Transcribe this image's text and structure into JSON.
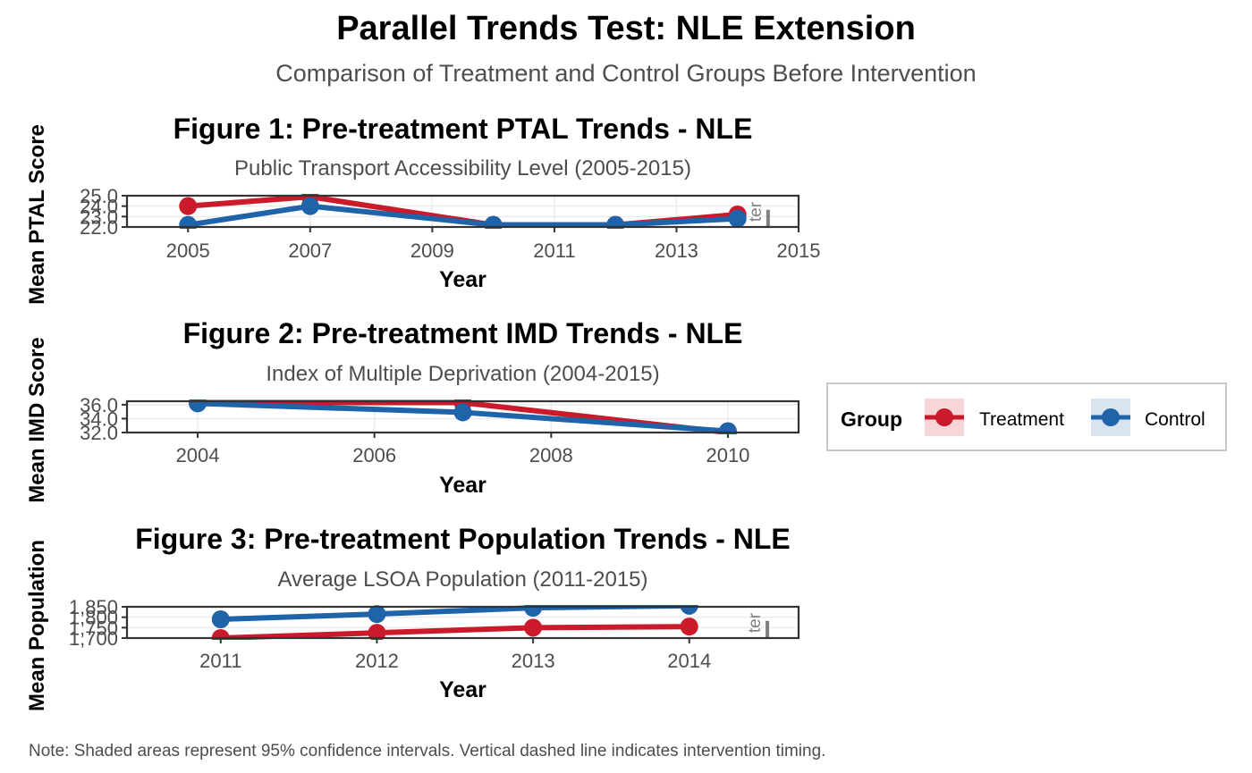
{
  "title": "Parallel Trends Test: NLE Extension",
  "subtitle": "Comparison of Treatment and Control Groups Before Intervention",
  "caption": "Note: Shaded areas represent 95% confidence intervals. Vertical dashed line indicates intervention timing.",
  "ylabels": [
    "Mean PTAL Score",
    "Mean IMD Score",
    "Mean Population"
  ],
  "legend": {
    "title": "Group",
    "entries": [
      {
        "label": "Treatment",
        "color": "#cb1a2a",
        "fill": "#f7d6da"
      },
      {
        "label": "Control",
        "color": "#1f63a8",
        "fill": "#d9e4f0"
      }
    ]
  },
  "colors": {
    "treatment": "#cb1a2a",
    "control": "#1f63a8",
    "grid": "#ebebeb",
    "axis": "#333333"
  },
  "chart_data": [
    {
      "type": "line",
      "title": "Figure 1: Pre-treatment PTAL Trends - NLE",
      "subtitle": "Public Transport Accessibility Level (2005-2015)",
      "xlabel": "Year",
      "ylabel": "Mean PTAL Score",
      "xlim": [
        2004,
        2015
      ],
      "ylim": [
        22,
        25
      ],
      "xticks": [
        2005,
        2007,
        2009,
        2011,
        2013,
        2015
      ],
      "yticks": [
        22,
        23,
        24,
        25
      ],
      "ytick_labels": [
        "22.0",
        "23.0",
        "24.0",
        "25.0"
      ],
      "intervention": {
        "x": 2014.5,
        "label": "ter"
      },
      "series": [
        {
          "name": "Treatment",
          "x": [
            2005,
            2007,
            2010,
            2012,
            2014
          ],
          "y": [
            24.0,
            24.9,
            22.2,
            22.2,
            23.2
          ]
        },
        {
          "name": "Control",
          "x": [
            2005,
            2007,
            2010,
            2012,
            2014
          ],
          "y": [
            22.2,
            24.0,
            22.2,
            22.2,
            22.8
          ]
        }
      ]
    },
    {
      "type": "line",
      "title": "Figure 2: Pre-treatment IMD Trends - NLE",
      "subtitle": "Index of Multiple Deprivation (2004-2015)",
      "xlabel": "Year",
      "ylabel": "Mean IMD Score",
      "xlim": [
        2003.2,
        2010.8
      ],
      "ylim": [
        32,
        36.5
      ],
      "xticks": [
        2004,
        2006,
        2008,
        2010
      ],
      "yticks": [
        32,
        34,
        36
      ],
      "ytick_labels": [
        "32.0",
        "34.0",
        "36.0"
      ],
      "series": [
        {
          "name": "Treatment",
          "x": [
            2004,
            2007,
            2010
          ],
          "y": [
            36.3,
            36.3,
            32.0
          ]
        },
        {
          "name": "Control",
          "x": [
            2004,
            2007,
            2010
          ],
          "y": [
            36.2,
            34.9,
            32.2
          ]
        }
      ]
    },
    {
      "type": "line",
      "title": "Figure 3: Pre-treatment Population Trends - NLE",
      "subtitle": "Average LSOA Population (2011-2015)",
      "xlabel": "Year",
      "ylabel": "Mean Population",
      "xlim": [
        2010.4,
        2014.7
      ],
      "ylim": [
        1700,
        1850
      ],
      "xticks": [
        2011,
        2012,
        2013,
        2014
      ],
      "yticks": [
        1700,
        1750,
        1800,
        1850
      ],
      "ytick_labels": [
        "1,700",
        "1,750",
        "1,800",
        "1,850"
      ],
      "intervention": {
        "x": 2014.5,
        "label": "ter"
      },
      "series": [
        {
          "name": "Treatment",
          "x": [
            2011,
            2012,
            2013,
            2014
          ],
          "y": [
            1700,
            1725,
            1750,
            1755
          ]
        },
        {
          "name": "Control",
          "x": [
            2011,
            2012,
            2013,
            2014
          ],
          "y": [
            1790,
            1815,
            1845,
            1855
          ]
        }
      ]
    }
  ]
}
